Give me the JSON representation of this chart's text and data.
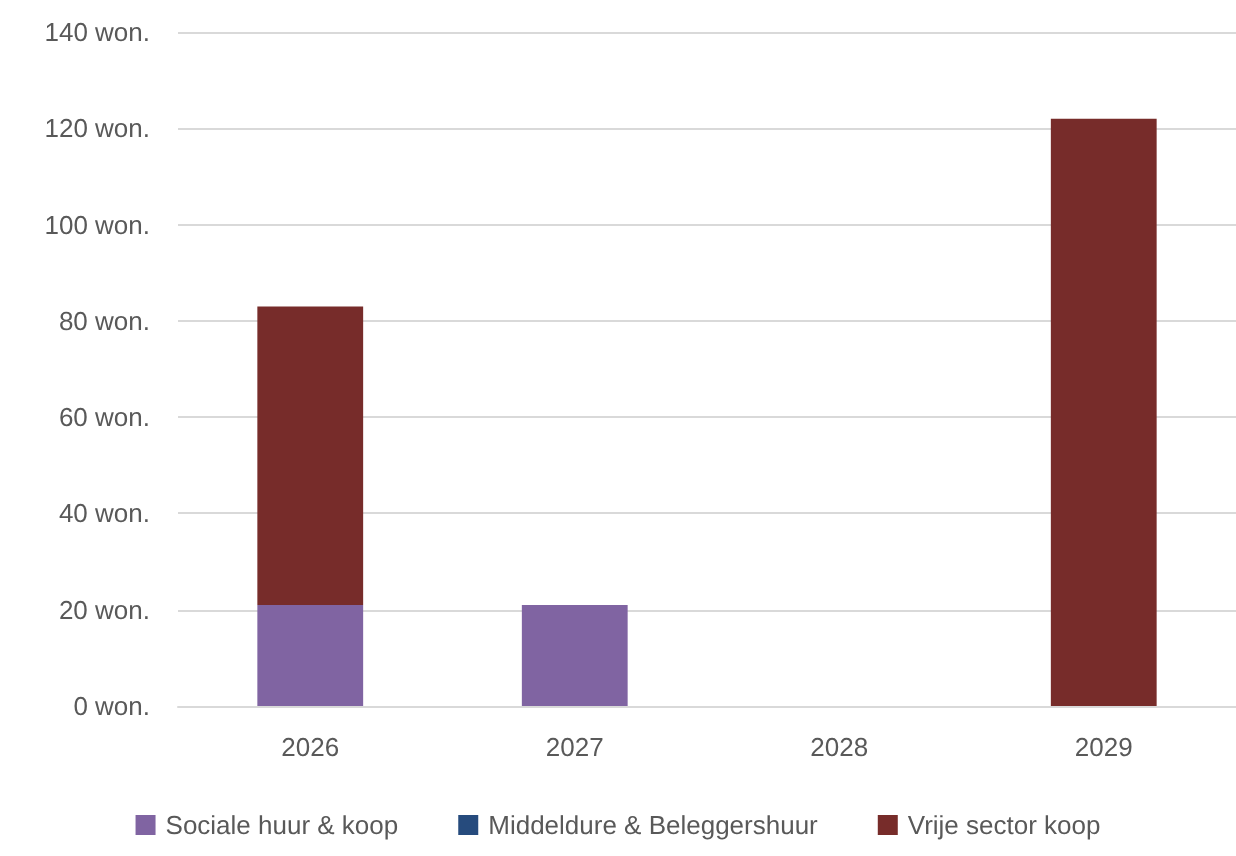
{
  "chart_data": {
    "type": "bar",
    "stacked": true,
    "categories": [
      "2026",
      "2027",
      "2028",
      "2029"
    ],
    "series": [
      {
        "name": "Sociale huur & koop",
        "color": "#8064a2",
        "values": [
          21,
          21,
          null,
          null
        ]
      },
      {
        "name": "Middeldure & Beleggershuur",
        "color": "#264b7d",
        "values": [
          null,
          null,
          null,
          null
        ]
      },
      {
        "name": "Vrije sector koop",
        "color": "#772c2a",
        "values": [
          62,
          null,
          null,
          122
        ]
      }
    ],
    "ylim": [
      0,
      140
    ],
    "yticks": [
      {
        "value": 0,
        "label": "0 won."
      },
      {
        "value": 20,
        "label": "20 won."
      },
      {
        "value": 40,
        "label": "40 won."
      },
      {
        "value": 60,
        "label": "60 won."
      },
      {
        "value": 80,
        "label": "80 won."
      },
      {
        "value": 100,
        "label": "100 won."
      },
      {
        "value": 120,
        "label": "120 won."
      },
      {
        "value": 140,
        "label": "140 won."
      }
    ],
    "grid": "y",
    "legend": "bottom"
  }
}
